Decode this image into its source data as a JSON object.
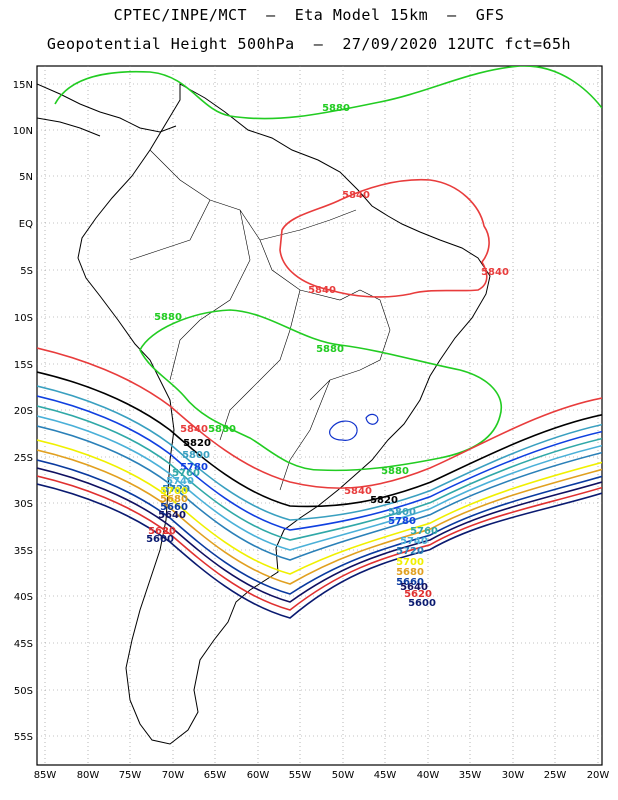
{
  "title_line1": "CPTEC/INPE/MCT  –  Eta Model 15km  –  GFS",
  "title_line2": "Geopotential Height 500hPa  –  27/09/2020 12UTC fct=65h",
  "lat_labels": [
    "15N",
    "10N",
    "5N",
    "EQ",
    "5S",
    "10S",
    "15S",
    "20S",
    "25S",
    "30S",
    "35S",
    "40S",
    "45S",
    "50S",
    "55S"
  ],
  "lon_labels": [
    "85W",
    "80W",
    "75W",
    "70W",
    "65W",
    "60W",
    "55W",
    "50W",
    "45W",
    "40W",
    "35W",
    "30W",
    "25W",
    "20W"
  ],
  "contours": [
    {
      "value": "5880",
      "color": "#22cc22"
    },
    {
      "value": "5860",
      "color": "#1133cc"
    },
    {
      "value": "5840",
      "color": "#e83c3c"
    },
    {
      "value": "5820",
      "color": "#000000"
    },
    {
      "value": "5800",
      "color": "#3aa0c0"
    },
    {
      "value": "5780",
      "color": "#1040e0"
    },
    {
      "value": "5760",
      "color": "#30a8a8"
    },
    {
      "value": "5740",
      "color": "#4ab0d8"
    },
    {
      "value": "5720",
      "color": "#2a80b8"
    },
    {
      "value": "5700",
      "color": "#f0f000"
    },
    {
      "value": "5680",
      "color": "#e0a020"
    },
    {
      "value": "5660",
      "color": "#0a3aa0"
    },
    {
      "value": "5640",
      "color": "#101060"
    },
    {
      "value": "5620",
      "color": "#e03030"
    },
    {
      "value": "5600",
      "color": "#0a1a70"
    }
  ],
  "labels": {
    "green_north": "5880",
    "green_mid1": "5880",
    "green_mid2": "5880",
    "green_south": "5880",
    "green_east": "5880",
    "red_north": "5840",
    "red_west": "5840",
    "red_east": "5840",
    "red_south_w": "5840",
    "red_south_e": "5840",
    "black_w": "5820",
    "black_e": "5820",
    "c5800_w": "5800",
    "c5780_w": "5780",
    "c5760_w": "5760",
    "c5740_w": "5740",
    "c5720_w": "5720",
    "c5700_w": "5700",
    "c5680_w": "5680",
    "c5660_w": "5660",
    "c5640_w": "5640",
    "c5620_w": "5620",
    "c5600_w": "5600",
    "c5800_e": "5800",
    "c5780_e": "5780",
    "c5760_e": "5760",
    "c5740_e": "5740",
    "c5720_e": "5720",
    "c5700_e": "5700",
    "c5680_e": "5680",
    "c5660_e": "5660",
    "c5640_e": "5640",
    "c5620_e": "5620",
    "c5600_e": "5600"
  }
}
